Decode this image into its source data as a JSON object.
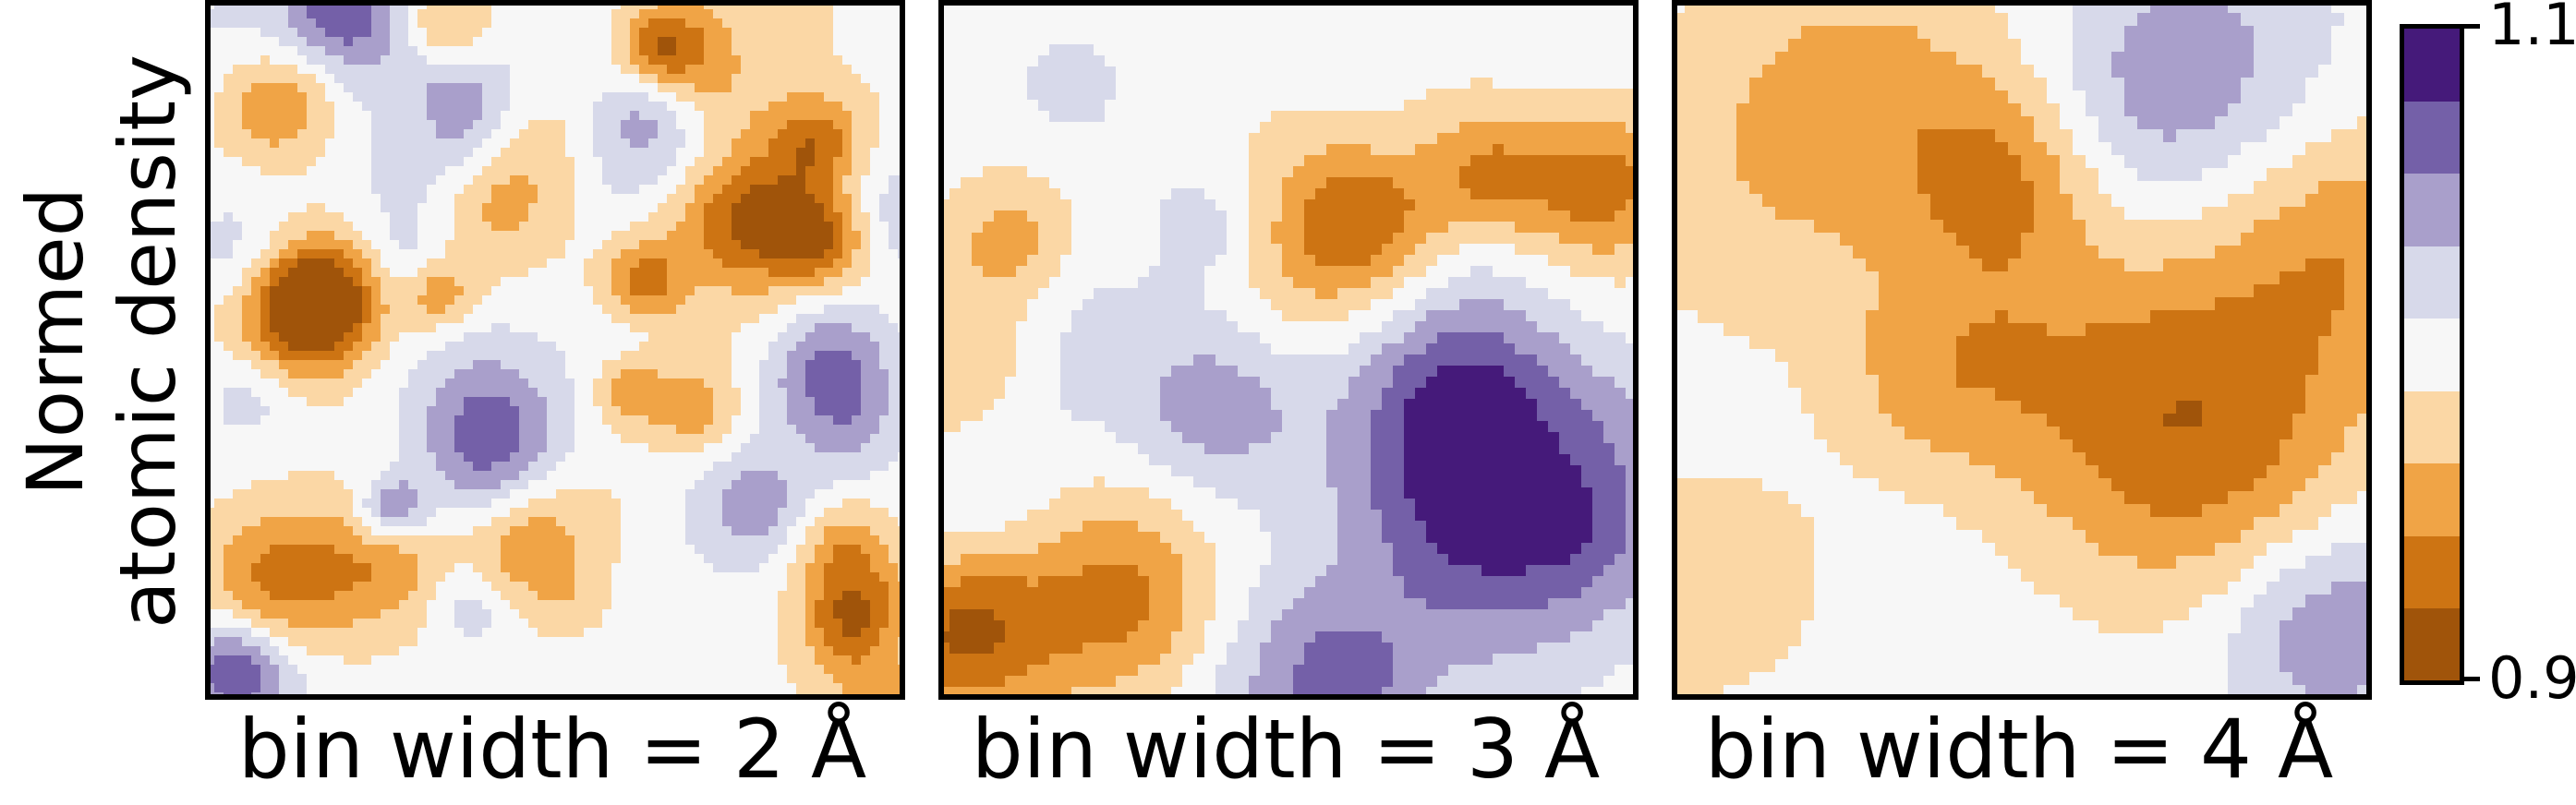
{
  "chart_data": {
    "type": "heatmap",
    "ylabel_lines": [
      "Normed",
      "atomic density"
    ],
    "panels": [
      {
        "caption": "bin width = 2 Å",
        "smoothness": "fine"
      },
      {
        "caption": "bin width = 3 Å",
        "smoothness": "medium"
      },
      {
        "caption": "bin width = 4 Å",
        "smoothness": "coarse"
      }
    ],
    "colorbar": {
      "min": 0.9,
      "max": 1.1,
      "tick_labels": [
        "1.1",
        "0.9"
      ],
      "colors_bottom_to_top": [
        "#a0540a",
        "#cd7413",
        "#f0a446",
        "#fbd7a5",
        "#f7f7f7",
        "#d7d9ea",
        "#a99fcb",
        "#7460a8",
        "#451a7a"
      ]
    }
  }
}
